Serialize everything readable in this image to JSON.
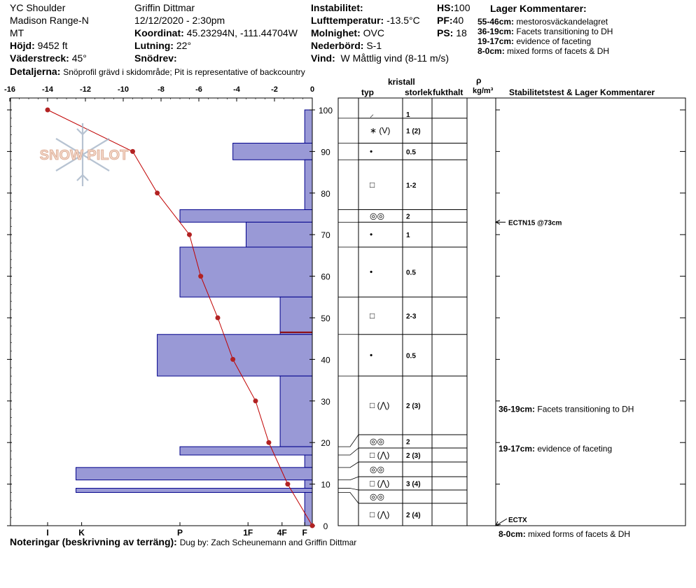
{
  "header": {
    "location": "YC Shoulder",
    "range": "Madison Range-N",
    "state": "MT",
    "elevation_label": "Höjd:",
    "elevation_value": "9452 ft",
    "aspect_label": "Väderstreck:",
    "aspect_value": "45°",
    "observer": "Griffin Dittmar",
    "datetime": "12/12/2020 - 2:30pm",
    "coord_label": "Koordinat:",
    "coord_value": "45.23294N, -111.44704W",
    "slope_label": "Lutning:",
    "slope_value": "22°",
    "drift_label": "Snödrev:",
    "drift_value": "",
    "instability_label": "Instabilitet:",
    "instability_value": "",
    "airtemp_label": "Lufttemperatur:",
    "airtemp_value": "-13.5°C",
    "sky_label": "Molnighet:",
    "sky_value": "OVC",
    "precip_label": "Nederbörd:",
    "precip_value": "S-1",
    "wind_label": "Vind:",
    "wind_value": "W Måttlig vind (8-11 m/s)",
    "hs_label": "HS:",
    "hs_value": "100",
    "pf_label": "PF:",
    "pf_value": "40",
    "ps_label": "PS:",
    "ps_value": "18",
    "details_label": "Detaljerna:",
    "details_value": "Snöprofil grävd i skidområde;  Pit is representative of backcountry"
  },
  "layer_comments_title": "Lager Kommentarer:",
  "layer_comments": [
    {
      "range": "55-46cm:",
      "text": "mestorosväckandelagret"
    },
    {
      "range": "36-19cm:",
      "text": "Facets transitioning to DH"
    },
    {
      "range": "19-17cm:",
      "text": "evidence of faceting"
    },
    {
      "range": "8-0cm:",
      "text": "mixed forms of facets & DH"
    }
  ],
  "footer": {
    "notes_label": "Noteringar (beskrivning av terräng):",
    "notes_value": "Dug by: Zach Scheunemann and Griffin Dittmar"
  },
  "logo_text": "SNOW PILOT",
  "columns": {
    "crystal": "kristall",
    "type": "typ",
    "size": "storlek",
    "moisture": "fukthalt",
    "rho": "ρ",
    "density_unit": "kg/m³",
    "stability": "Stabilitetstest & Lager Kommentarer"
  },
  "chart_data": {
    "type": "line",
    "x_ticks": [
      -16,
      -14,
      -12,
      -10,
      -8,
      -6,
      -4,
      -2,
      0
    ],
    "xlim": [
      -16,
      0
    ],
    "ylim": [
      0,
      100
    ],
    "y_ticks": [
      0,
      10,
      20,
      30,
      40,
      50,
      60,
      70,
      80,
      90,
      100
    ],
    "hardness_labels": [
      "I",
      "K",
      "P",
      "1F",
      "4F",
      "F"
    ],
    "hardness_pos": [
      -14,
      -12.2,
      -7,
      -3.4,
      -1.6,
      -0.4
    ],
    "temperature_profile": [
      {
        "depth": 100,
        "temp": -14
      },
      {
        "depth": 90,
        "temp": -9.5
      },
      {
        "depth": 80,
        "temp": -8.2
      },
      {
        "depth": 70,
        "temp": -6.5
      },
      {
        "depth": 60,
        "temp": -5.9
      },
      {
        "depth": 50,
        "temp": -5
      },
      {
        "depth": 40,
        "temp": -4.2
      },
      {
        "depth": 30,
        "temp": -3
      },
      {
        "depth": 20,
        "temp": -2.3
      },
      {
        "depth": 10,
        "temp": -1.3
      },
      {
        "depth": 0,
        "temp": 0
      }
    ],
    "hardness_layers": [
      {
        "bottom": 92,
        "top": 100,
        "hardness": -0.4
      },
      {
        "bottom": 88,
        "top": 92,
        "hardness": -4.2
      },
      {
        "bottom": 76,
        "top": 88,
        "hardness": -0.4
      },
      {
        "bottom": 73,
        "top": 76,
        "hardness": -7
      },
      {
        "bottom": 67,
        "top": 73,
        "hardness": -3.5
      },
      {
        "bottom": 55,
        "top": 67,
        "hardness": -7
      },
      {
        "bottom": 46,
        "top": 55,
        "hardness": -1.7
      },
      {
        "bottom": 36,
        "top": 46,
        "hardness": -8.2
      },
      {
        "bottom": 19,
        "top": 36,
        "hardness": -1.7
      },
      {
        "bottom": 17,
        "top": 19,
        "hardness": -7
      },
      {
        "bottom": 14,
        "top": 17,
        "hardness": -0.4
      },
      {
        "bottom": 11,
        "top": 14,
        "hardness": -12.5
      },
      {
        "bottom": 9,
        "top": 11,
        "hardness": -0.4
      },
      {
        "bottom": 8,
        "top": 9,
        "hardness": -12.5
      },
      {
        "bottom": 0,
        "top": 8,
        "hardness": -0.4
      }
    ],
    "weak_layer_depth": 46.5,
    "stratigraphy": [
      {
        "bottom": 98,
        "top": 100,
        "type": "⸝",
        "size": "1"
      },
      {
        "bottom": 92,
        "top": 98,
        "type": "∗ (V)",
        "size": "1 (2)"
      },
      {
        "bottom": 88,
        "top": 92,
        "type": "•",
        "size": "0.5"
      },
      {
        "bottom": 76,
        "top": 88,
        "type": "□",
        "size": "1-2"
      },
      {
        "bottom": 73,
        "top": 76,
        "type": "◎◎",
        "size": "2"
      },
      {
        "bottom": 67,
        "top": 73,
        "type": "•",
        "size": "1"
      },
      {
        "bottom": 55,
        "top": 67,
        "type": "•",
        "size": "0.5"
      },
      {
        "bottom": 46,
        "top": 55,
        "type": "□",
        "size": "2-3"
      },
      {
        "bottom": 36,
        "top": 46,
        "type": "•",
        "size": "0.5"
      },
      {
        "bottom": 19,
        "top": 36,
        "type": "□ (⋀)",
        "size": "2 (3)"
      },
      {
        "bottom": 17,
        "top": 19,
        "type": "◎◎",
        "size": "2"
      },
      {
        "bottom": 14,
        "top": 17,
        "type": "□ (⋀)",
        "size": "2 (3)"
      },
      {
        "bottom": 11,
        "top": 14,
        "type": "◎◎",
        "size": ""
      },
      {
        "bottom": 9,
        "top": 11,
        "type": "□ (⋀)",
        "size": "3 (4)"
      },
      {
        "bottom": 8,
        "top": 9,
        "type": "◎◎",
        "size": ""
      },
      {
        "bottom": 0,
        "top": 8,
        "type": "□ (⋀)",
        "size": "2 (4)"
      }
    ],
    "tests": [
      {
        "depth": 73,
        "label": "ECTN15 @73cm"
      },
      {
        "depth": 0,
        "label": "ECTX"
      }
    ],
    "right_comments": [
      {
        "depth": 28,
        "range": "36-19cm:",
        "text": "Facets transitioning to DH"
      },
      {
        "depth": 18.5,
        "range": "19-17cm:",
        "text": "evidence of faceting"
      },
      {
        "depth": -2,
        "range": "8-0cm:",
        "text": "mixed forms of facets & DH"
      }
    ]
  }
}
